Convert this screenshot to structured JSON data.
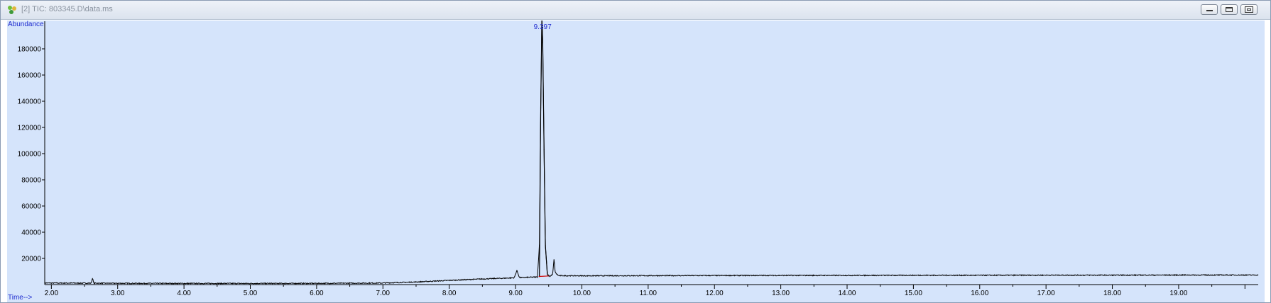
{
  "window": {
    "title": "[2] TIC: 803345.D\\data.ms",
    "icon": "chromatogram-app-icon",
    "buttons": [
      "minimize-icon",
      "restore-icon",
      "close-icon"
    ]
  },
  "chart_data": {
    "type": "line",
    "ylabel": "Abundance",
    "xlabel": "Time-->",
    "xlim": [
      1.9,
      20.2
    ],
    "ylim": [
      0,
      200000
    ],
    "x_ticks": [
      "2.00",
      "3.00",
      "4.00",
      "5.00",
      "6.00",
      "7.00",
      "8.00",
      "9.00",
      "10.00",
      "11.00",
      "12.00",
      "13.00",
      "14.00",
      "15.00",
      "16.00",
      "17.00",
      "18.00",
      "19.00"
    ],
    "y_ticks": [
      "20000",
      "40000",
      "60000",
      "80000",
      "100000",
      "120000",
      "140000",
      "160000",
      "180000"
    ],
    "peak_label": "9.397",
    "series": [
      {
        "color": "#000000",
        "points": [
          [
            1.9,
            1200
          ],
          [
            2.6,
            1100
          ],
          [
            2.62,
            5000
          ],
          [
            2.64,
            1100
          ],
          [
            3.0,
            1000
          ],
          [
            4.0,
            900
          ],
          [
            5.0,
            900
          ],
          [
            6.0,
            950
          ],
          [
            7.0,
            1200
          ],
          [
            7.5,
            2000
          ],
          [
            8.0,
            3200
          ],
          [
            8.5,
            4300
          ],
          [
            8.9,
            5000
          ],
          [
            8.98,
            5200
          ],
          [
            9.02,
            10800
          ],
          [
            9.06,
            5300
          ],
          [
            9.2,
            5600
          ],
          [
            9.33,
            5800
          ],
          [
            9.36,
            30000
          ],
          [
            9.38,
            135000
          ],
          [
            9.397,
            203000
          ],
          [
            9.41,
            185000
          ],
          [
            9.43,
            103000
          ],
          [
            9.45,
            30000
          ],
          [
            9.48,
            7500
          ],
          [
            9.52,
            6200
          ],
          [
            9.56,
            8000
          ],
          [
            9.58,
            19000
          ],
          [
            9.6,
            9000
          ],
          [
            9.65,
            6800
          ],
          [
            9.7,
            6800
          ],
          [
            10.0,
            6700
          ],
          [
            11.0,
            6800
          ],
          [
            12.0,
            6900
          ],
          [
            13.0,
            7000
          ],
          [
            14.0,
            7000
          ],
          [
            15.0,
            7100
          ],
          [
            16.0,
            7100
          ],
          [
            17.0,
            7200
          ],
          [
            18.0,
            7200
          ],
          [
            19.0,
            7300
          ],
          [
            20.2,
            7300
          ]
        ]
      }
    ]
  },
  "colors": {
    "plot_background": "#d5e4fb",
    "axis_label": "#1f2ccf",
    "trace": "#000000",
    "integration_marker": "#cc0000"
  }
}
